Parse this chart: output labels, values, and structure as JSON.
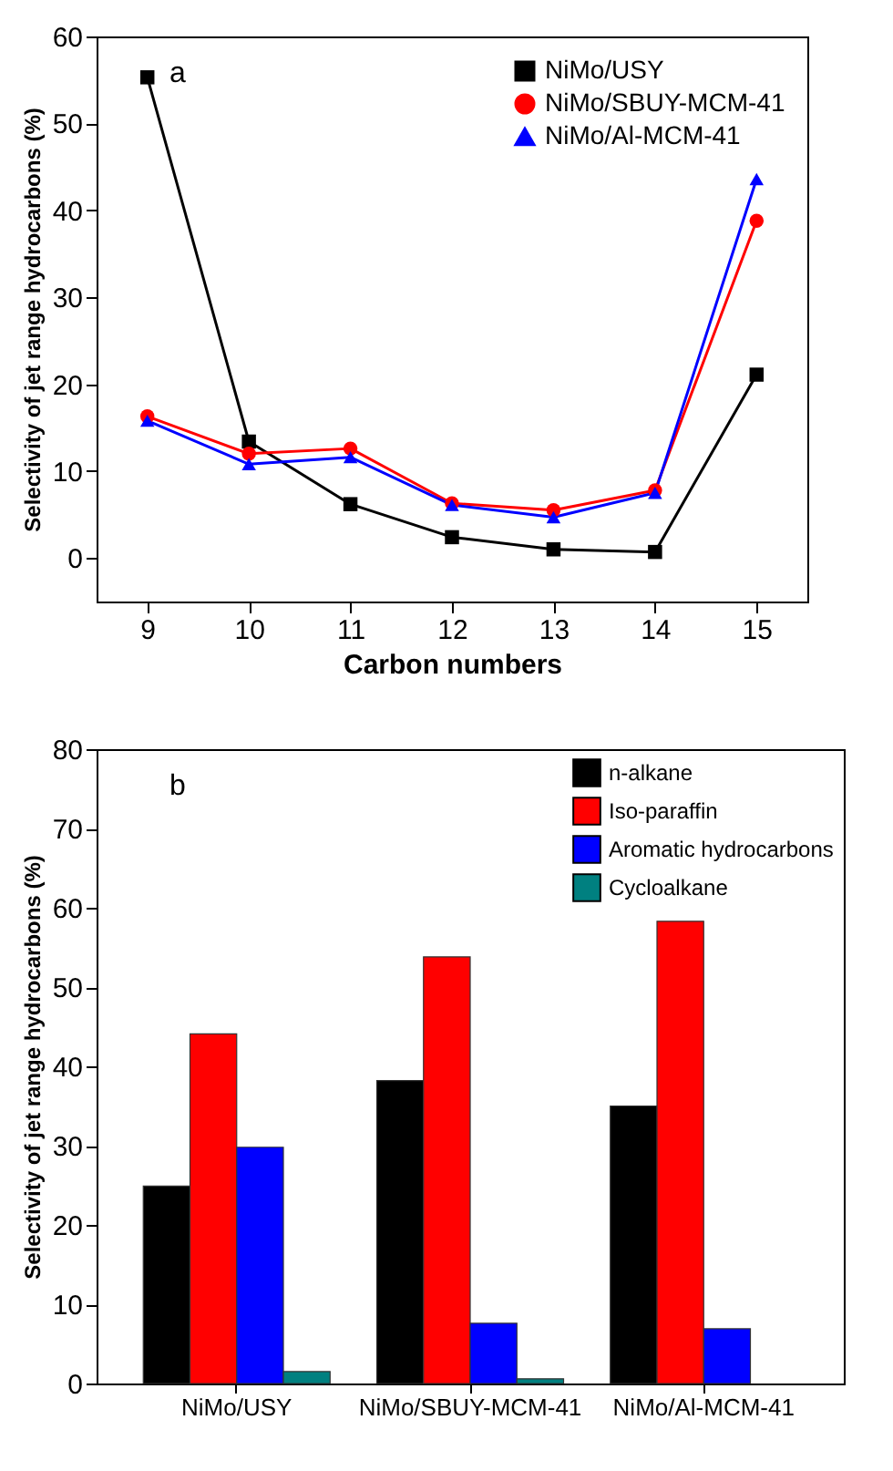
{
  "chart_data": [
    {
      "type": "line",
      "annotations": [
        "a"
      ],
      "xlabel": "Carbon numbers",
      "ylabel": "Selectivity of jet range hydrocarbons (%)",
      "x": [
        9,
        10,
        11,
        12,
        13,
        14,
        15
      ],
      "xlim": [
        8.5,
        15.5
      ],
      "xticks": [
        9,
        10,
        11,
        12,
        13,
        14,
        15
      ],
      "ylim": [
        -5,
        60
      ],
      "yticks": [
        0,
        10,
        20,
        30,
        40,
        50,
        60
      ],
      "grid": false,
      "legend": "top right",
      "line_style": "solid",
      "series": [
        {
          "name": "NiMo/USY",
          "color": "#000000",
          "marker": "square",
          "values": [
            55.3,
            13.4,
            6.2,
            2.4,
            1.0,
            0.7,
            21.1
          ]
        },
        {
          "name": "NiMo/SBUY-MCM-41",
          "color": "#ff0000",
          "marker": "circle",
          "values": [
            16.3,
            12.0,
            12.6,
            6.3,
            5.5,
            7.8,
            38.8
          ]
        },
        {
          "name": "NiMo/Al-MCM-41",
          "color": "#0000ff",
          "marker": "triangle",
          "values": [
            15.8,
            10.8,
            11.6,
            6.1,
            4.7,
            7.5,
            43.6
          ]
        }
      ]
    },
    {
      "type": "bar",
      "annotations": [
        "b"
      ],
      "ylabel": "Selectivity of jet range hydrocarbons (%)",
      "categories": [
        "NiMo/USY",
        "NiMo/SBUY-MCM-41",
        "NiMo/Al-MCM-41"
      ],
      "ylim": [
        0,
        80
      ],
      "yticks": [
        0,
        10,
        20,
        30,
        40,
        50,
        60,
        70,
        80
      ],
      "grid": false,
      "legend": "top right",
      "series": [
        {
          "name": "n-alkane",
          "color": "#000000",
          "values": [
            24.9,
            38.2,
            35.0
          ]
        },
        {
          "name": "Iso-paraffin",
          "color": "#ff0000",
          "values": [
            44.1,
            53.8,
            58.3
          ]
        },
        {
          "name": "Aromatic hydrocarbons",
          "color": "#0000ff",
          "values": [
            29.8,
            7.6,
            6.9
          ]
        },
        {
          "name": "Cycloalkane",
          "color": "#008080",
          "values": [
            1.5,
            0.6,
            null
          ]
        }
      ]
    }
  ]
}
